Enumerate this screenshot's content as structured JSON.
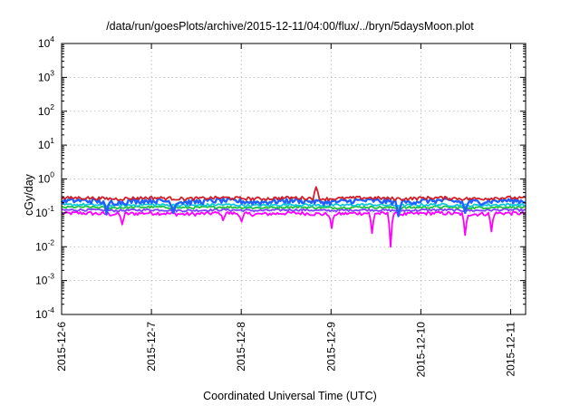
{
  "chart_data": {
    "type": "line",
    "title": "/data/run/goesPlots/archive/2015-12-11/04:00/flux/../bryn/5daysMoon.plot",
    "xlabel": "Coordinated Universal Time (UTC)",
    "ylabel": "cGy/day",
    "yscale": "log",
    "ylim": [
      0.0001,
      10000
    ],
    "xlim": [
      "2015-12-06T00:00",
      "2015-12-11T04:00"
    ],
    "grid": true,
    "x_ticks": [
      "2015-12-6",
      "2015-12-7",
      "2015-12-8",
      "2015-12-9",
      "2015-12-10",
      "2015-12-11"
    ],
    "y_ticks": [
      {
        "base": "10",
        "exp": "-4",
        "value": 0.0001
      },
      {
        "base": "10",
        "exp": "-3",
        "value": 0.001
      },
      {
        "base": "10",
        "exp": "-2",
        "value": 0.01
      },
      {
        "base": "10",
        "exp": "-1",
        "value": 0.1
      },
      {
        "base": "10",
        "exp": "0",
        "value": 1
      },
      {
        "base": "10",
        "exp": "1",
        "value": 10
      },
      {
        "base": "10",
        "exp": "2",
        "value": 100
      },
      {
        "base": "10",
        "exp": "3",
        "value": 1000
      },
      {
        "base": "10",
        "exp": "4",
        "value": 10000
      }
    ],
    "series": [
      {
        "color": "#d0202a",
        "base": 0.27,
        "jitter": 0.22,
        "dips": [
          [
            "2015-12-08T20:00",
            0.58
          ]
        ]
      },
      {
        "color": "#2060ff",
        "base": 0.22,
        "jitter": 0.35,
        "dips": [
          [
            "2015-12-06T12:00",
            0.09
          ],
          [
            "2015-12-07T06:00",
            0.1
          ],
          [
            "2015-12-09T18:00",
            0.08
          ],
          [
            "2015-12-10T12:00",
            0.1
          ]
        ]
      },
      {
        "color": "#10c8d8",
        "base": 0.17,
        "jitter": 0.18,
        "dips": []
      },
      {
        "color": "#20c040",
        "base": 0.145,
        "jitter": 0.15,
        "dips": []
      },
      {
        "color": "#8040ff",
        "base": 0.12,
        "jitter": 0.15,
        "dips": []
      },
      {
        "color": "#ff00ff",
        "base": 0.095,
        "jitter": 0.25,
        "dips": [
          [
            "2015-12-06T16:00",
            0.045
          ],
          [
            "2015-12-07T19:00",
            0.06
          ],
          [
            "2015-12-08T00:00",
            0.055
          ],
          [
            "2015-12-09T00:00",
            0.035
          ],
          [
            "2015-12-09T11:00",
            0.025
          ],
          [
            "2015-12-09T16:00",
            0.01
          ],
          [
            "2015-12-10T12:00",
            0.022
          ],
          [
            "2015-12-10T19:00",
            0.028
          ]
        ]
      }
    ]
  }
}
